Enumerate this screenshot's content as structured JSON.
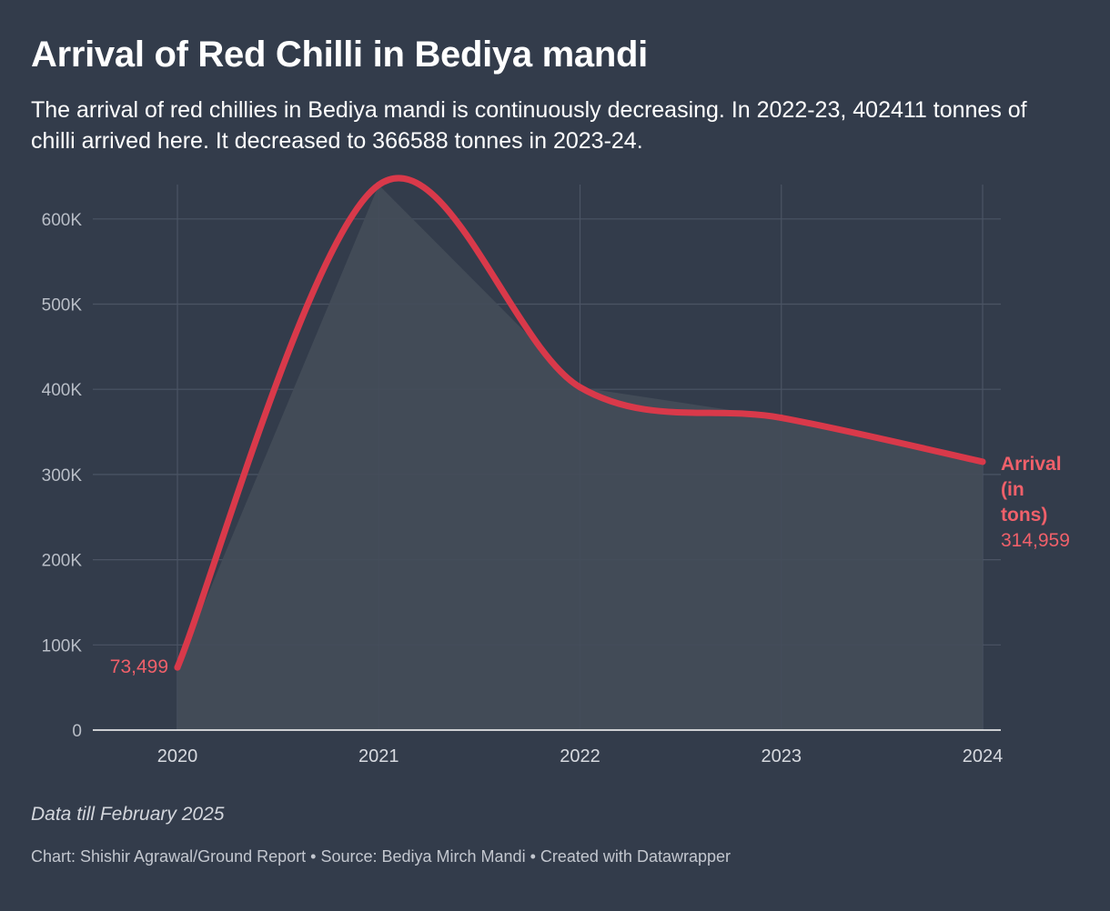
{
  "title": "Arrival of Red Chilli in Bediya mandi",
  "subtitle": "The arrival of red chillies in Bediya mandi is continuously decreasing. In 2022-23, 402411 tonnes of chilli arrived here. It decreased to 366588 tonnes in 2023-24.",
  "notes": "Data till February 2025",
  "byline": {
    "chart": "Chart: Shishir Agrawal/Ground Report",
    "separator": "•",
    "source": "Source: Bediya Mirch Mandi",
    "created": "Created with Datawrapper"
  },
  "colors": {
    "background": "#333c4b",
    "line": "#d9394a",
    "label": "#f0606a",
    "area": "#444c59"
  },
  "chart_data": {
    "type": "line",
    "x": [
      2020,
      2021,
      2022,
      2023,
      2024
    ],
    "series": [
      {
        "name": "Arrival (in tons)",
        "values": [
          73499,
          640000,
          402411,
          366588,
          314959
        ]
      }
    ],
    "ylim": [
      0,
      650000
    ],
    "y_ticks": [
      0,
      100000,
      200000,
      300000,
      400000,
      500000,
      600000
    ],
    "y_tick_labels": [
      "0",
      "100K",
      "200K",
      "300K",
      "400K",
      "500K",
      "600K"
    ],
    "x_tick_labels": [
      "2020",
      "2021",
      "2022",
      "2023",
      "2024"
    ],
    "grid": true,
    "smoothed": true,
    "area_fill": true,
    "legend": "none",
    "start_label": "73,499",
    "end_label_lines": [
      "Arrival",
      "(in",
      "tons)"
    ],
    "end_value_label": "314,959"
  }
}
